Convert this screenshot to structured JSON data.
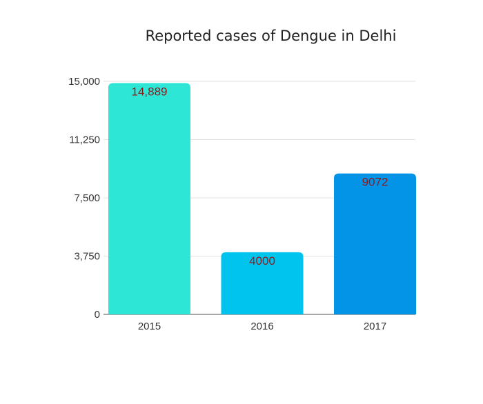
{
  "chart_data": {
    "type": "bar",
    "title": "Reported cases of Dengue in Delhi",
    "xlabel": "",
    "ylabel": "",
    "categories": [
      "2015",
      "2016",
      "2017"
    ],
    "values": [
      14889,
      4000,
      9072
    ],
    "data_labels": [
      "14,889",
      "4000",
      "9072"
    ],
    "bar_colors": [
      "#2ee6d6",
      "#00c4ee",
      "#0394e8"
    ],
    "ylim": [
      0,
      15000
    ],
    "y_ticks": [
      0,
      3750,
      7500,
      11250,
      15000
    ],
    "y_tick_labels": [
      "0",
      "3,750",
      "7,500",
      "11,250",
      "15,000"
    ],
    "grid": true,
    "legend": "none"
  }
}
